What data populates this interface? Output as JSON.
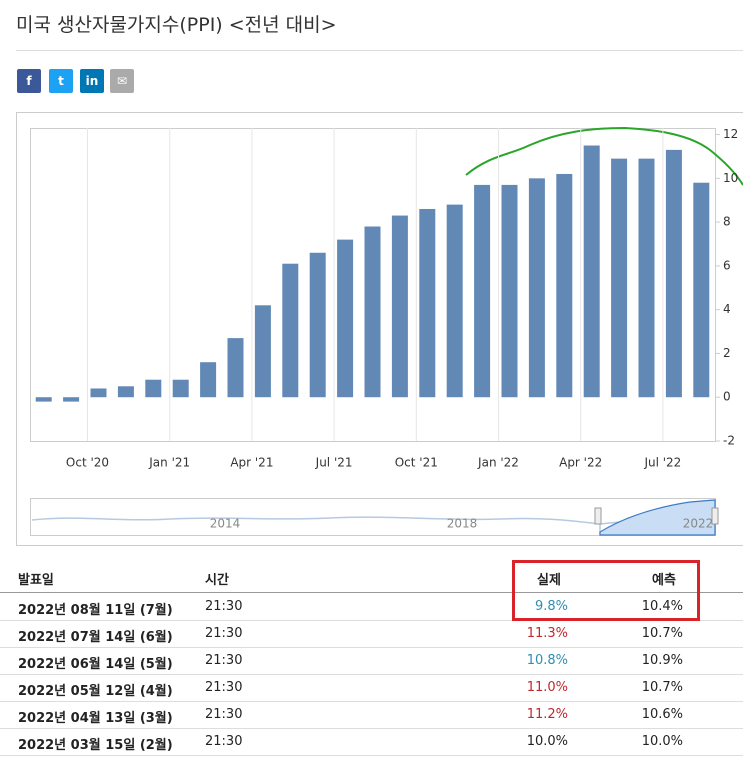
{
  "header": {
    "title": "미국 생산자물가지수(PPI) <전년 대비>"
  },
  "chart_data": {
    "type": "bar",
    "categories": [
      null,
      null,
      "Oct '20",
      null,
      null,
      "Jan '21",
      null,
      null,
      "Apr '21",
      null,
      null,
      "Jul '21",
      null,
      null,
      "Oct '21",
      null,
      null,
      "Jan '22",
      null,
      null,
      "Apr '22",
      null,
      null,
      "Jul '22",
      null
    ],
    "values": [
      -0.2,
      -0.2,
      0.4,
      0.5,
      0.8,
      0.8,
      1.6,
      2.7,
      4.2,
      6.1,
      6.6,
      7.2,
      7.8,
      8.3,
      8.6,
      8.8,
      9.7,
      9.7,
      10.0,
      10.2,
      11.5,
      10.9,
      10.9,
      11.3,
      9.8
    ],
    "color": "#6288b5",
    "ylim": [
      -2,
      12.3
    ],
    "yticks": [
      -2,
      0,
      2,
      4,
      6,
      8,
      10,
      12
    ],
    "grid": true,
    "navigator_labels": [
      "2014",
      "2018",
      "2022"
    ]
  },
  "table": {
    "columns": [
      "발표일",
      "시간",
      "실제",
      "예측"
    ],
    "rows": [
      [
        "2022년 08월 11일 (7월)",
        "21:30",
        "9.8%",
        "10.4%"
      ],
      [
        "2022년 07월 14일 (6월)",
        "21:30",
        "11.3%",
        "10.7%"
      ],
      [
        "2022년 06월 14일 (5월)",
        "21:30",
        "10.8%",
        "10.9%"
      ],
      [
        "2022년 05월 12일 (4월)",
        "21:30",
        "11.0%",
        "10.7%"
      ],
      [
        "2022년 04월 13일 (3월)",
        "21:30",
        "11.2%",
        "10.6%"
      ],
      [
        "2022년 03월 15일 (2월)",
        "21:30",
        "10.0%",
        "10.0%"
      ]
    ],
    "actual_colors": [
      "#2e8fb0",
      "#c0282d",
      "#2e8fb0",
      "#c0282d",
      "#c0282d",
      "#222222"
    ]
  }
}
